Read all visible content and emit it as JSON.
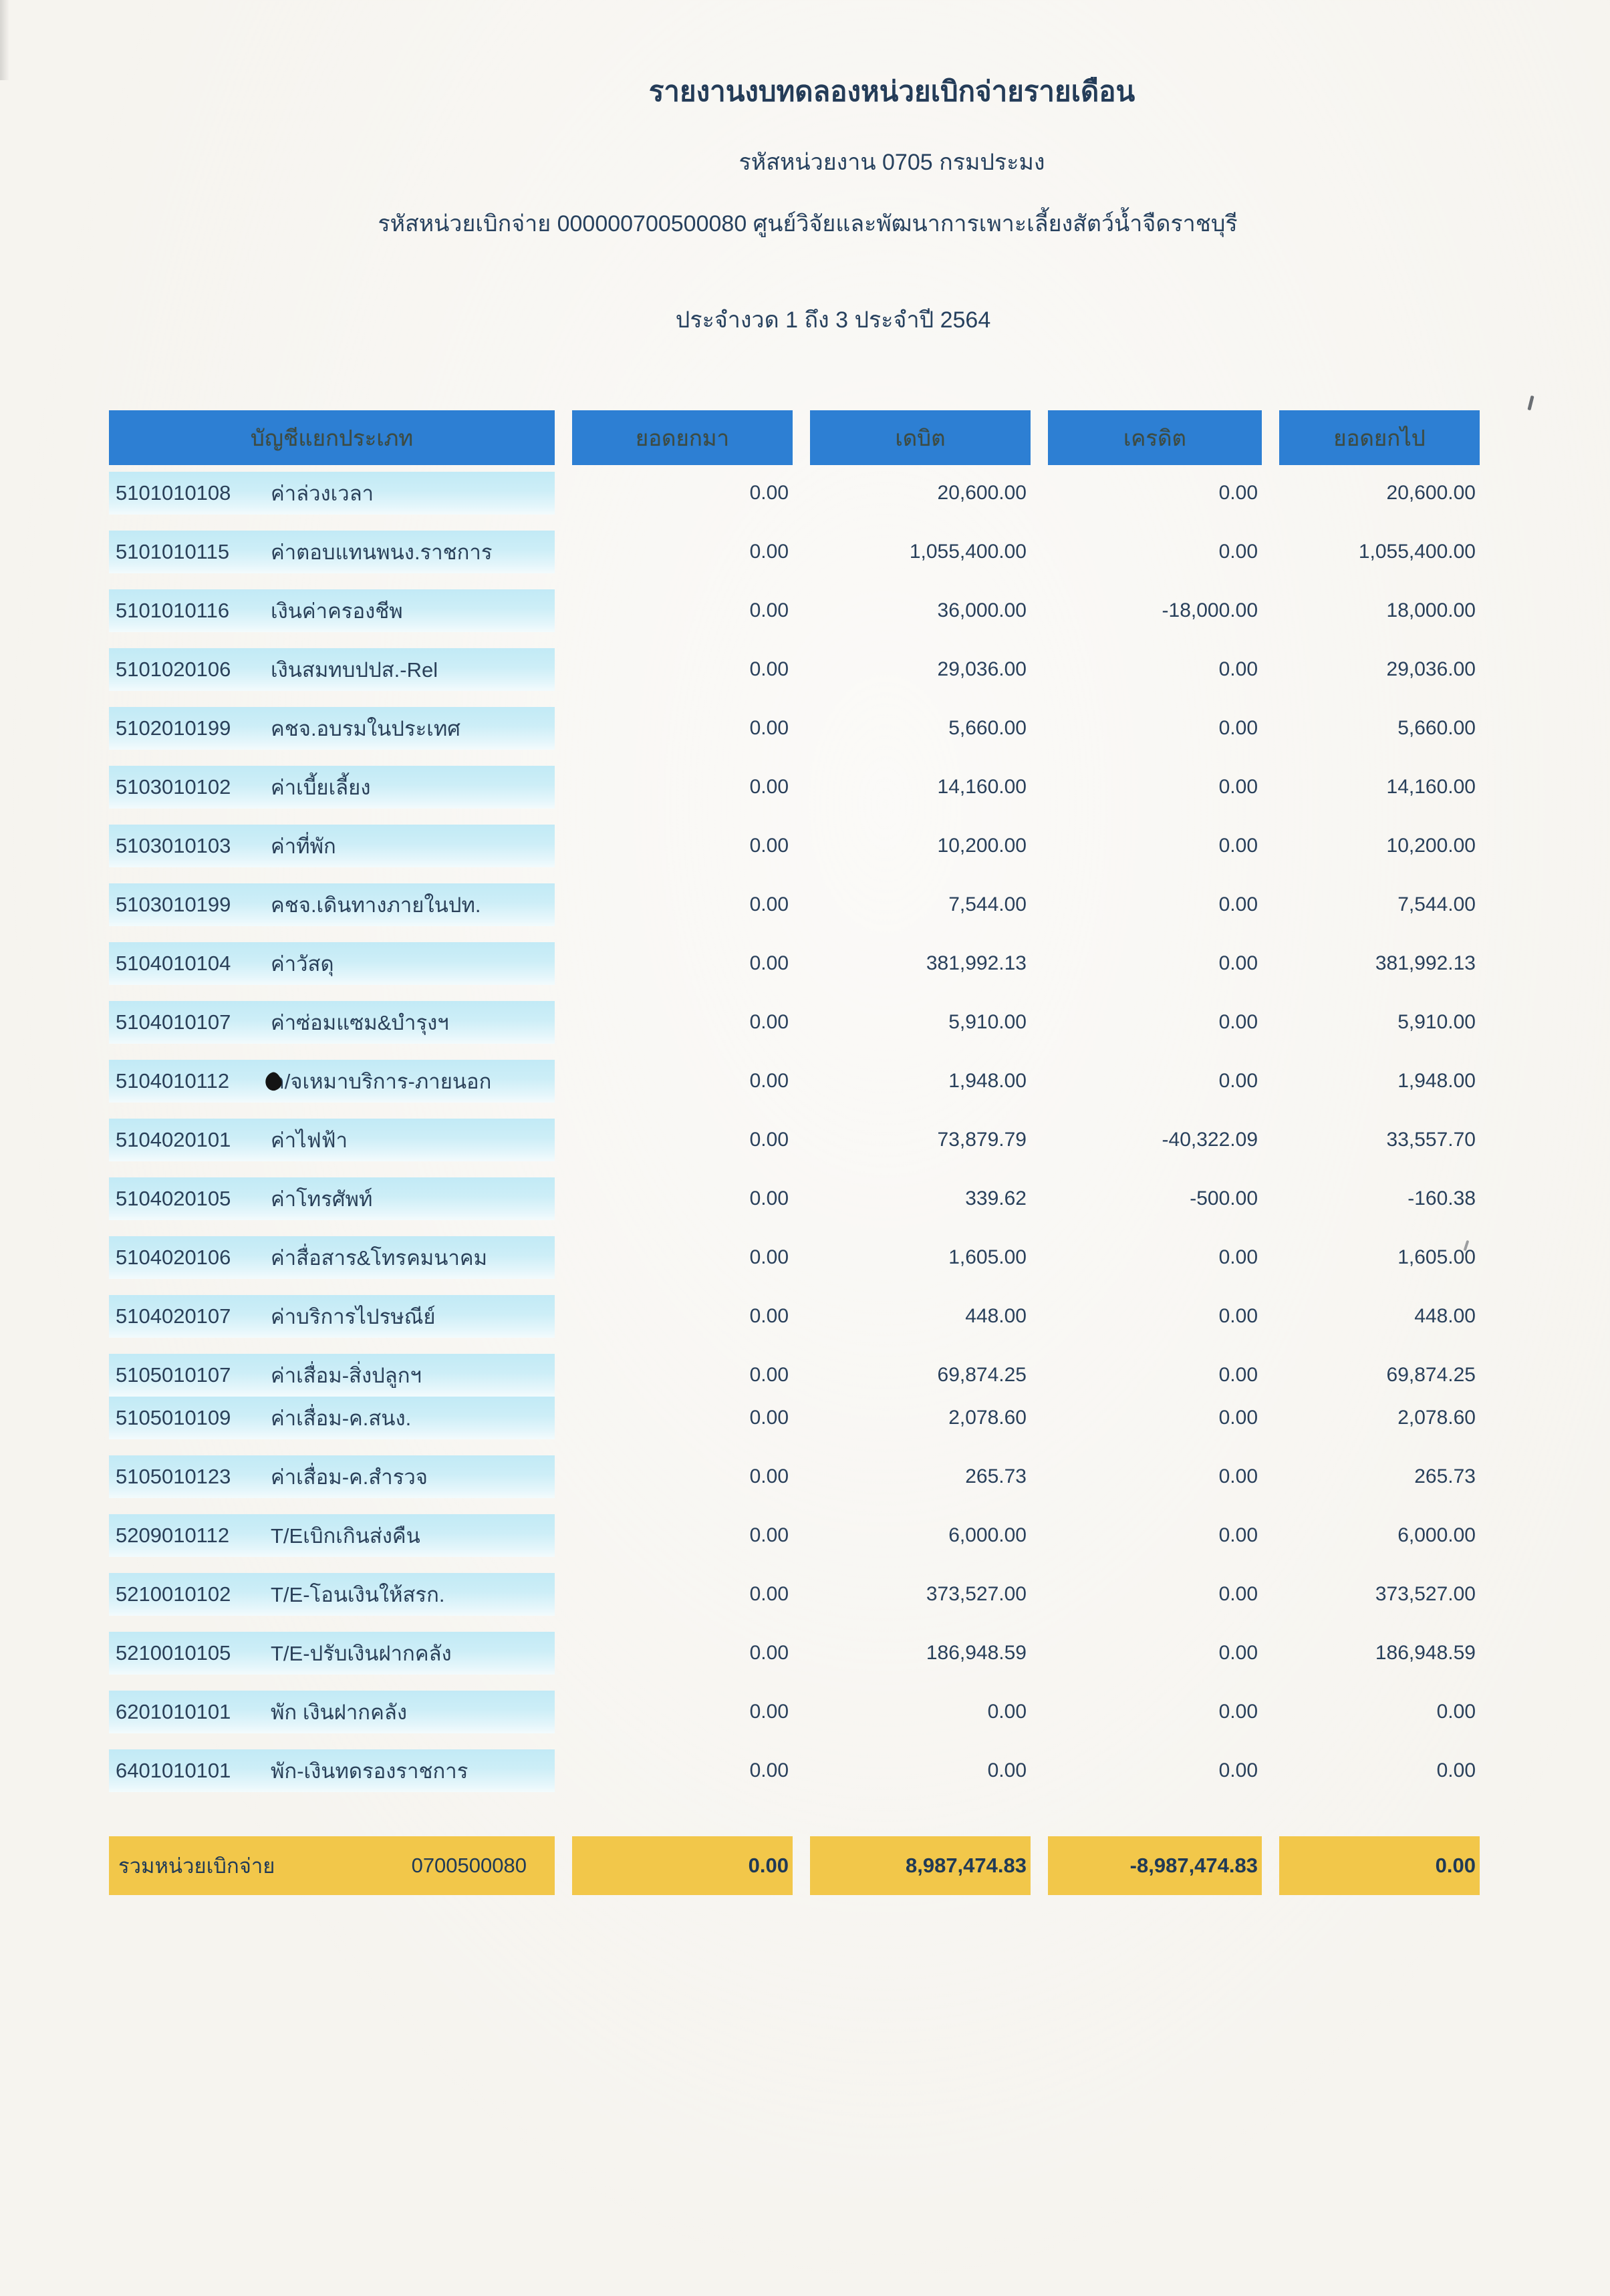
{
  "page": {
    "title": "รายงานงบทดลองหน่วยเบิกจ่ายรายเดือน",
    "agency_line": "รหัสหน่วยงาน 0705 กรมประมง",
    "unit_line": "รหัสหน่วยเบิกจ่าย 000000700500080 ศูนย์วิจัยและพัฒนาการเพาะเลี้ยงสัตว์น้ำจืดราชบุรี",
    "period_line": "ประจำงวด 1 ถึง 3 ประจำปี 2564"
  },
  "table": {
    "headers": {
      "account": "บัญชีแยกประเภท",
      "brought_forward": "ยอดยกมา",
      "debit": "เดบิต",
      "credit": "เครดิต",
      "carried_forward": "ยอดยกไป"
    },
    "rows": [
      {
        "code": "5101010108",
        "name": "ค่าล่วงเวลา",
        "brought_forward": "0.00",
        "debit": "20,600.00",
        "credit": "0.00",
        "carried_forward": "20,600.00"
      },
      {
        "code": "5101010115",
        "name": "ค่าตอบแทนพนง.ราชการ",
        "brought_forward": "0.00",
        "debit": "1,055,400.00",
        "credit": "0.00",
        "carried_forward": "1,055,400.00"
      },
      {
        "code": "5101010116",
        "name": "เงินค่าครองชีพ",
        "brought_forward": "0.00",
        "debit": "36,000.00",
        "credit": "-18,000.00",
        "carried_forward": "18,000.00"
      },
      {
        "code": "5101020106",
        "name": "เงินสมทบปปส.-Rel",
        "brought_forward": "0.00",
        "debit": "29,036.00",
        "credit": "0.00",
        "carried_forward": "29,036.00"
      },
      {
        "code": "5102010199",
        "name": "คชจ.อบรมในประเทศ",
        "brought_forward": "0.00",
        "debit": "5,660.00",
        "credit": "0.00",
        "carried_forward": "5,660.00"
      },
      {
        "code": "5103010102",
        "name": "ค่าเบี้ยเลี้ยง",
        "brought_forward": "0.00",
        "debit": "14,160.00",
        "credit": "0.00",
        "carried_forward": "14,160.00"
      },
      {
        "code": "5103010103",
        "name": "ค่าที่พัก",
        "brought_forward": "0.00",
        "debit": "10,200.00",
        "credit": "0.00",
        "carried_forward": "10,200.00"
      },
      {
        "code": "5103010199",
        "name": "คชจ.เดินทางภายในปท.",
        "brought_forward": "0.00",
        "debit": "7,544.00",
        "credit": "0.00",
        "carried_forward": "7,544.00"
      },
      {
        "code": "5104010104",
        "name": "ค่าวัสดุ",
        "brought_forward": "0.00",
        "debit": "381,992.13",
        "credit": "0.00",
        "carried_forward": "381,992.13"
      },
      {
        "code": "5104010107",
        "name": "ค่าซ่อมแซม&บำรุงฯ",
        "brought_forward": "0.00",
        "debit": "5,910.00",
        "credit": "0.00",
        "carried_forward": "5,910.00"
      },
      {
        "code": "5104010112",
        "name": "ค/จเหมาบริการ-ภายนอก",
        "brought_forward": "0.00",
        "debit": "1,948.00",
        "credit": "0.00",
        "carried_forward": "1,948.00",
        "ink_mark": true
      },
      {
        "code": "5104020101",
        "name": "ค่าไฟฟ้า",
        "brought_forward": "0.00",
        "debit": "73,879.79",
        "credit": "-40,322.09",
        "carried_forward": "33,557.70"
      },
      {
        "code": "5104020105",
        "name": "ค่าโทรศัพท์",
        "brought_forward": "0.00",
        "debit": "339.62",
        "credit": "-500.00",
        "carried_forward": "-160.38"
      },
      {
        "code": "5104020106",
        "name": "ค่าสื่อสาร&โทรคมนาคม",
        "brought_forward": "0.00",
        "debit": "1,605.00",
        "credit": "0.00",
        "carried_forward": "1,605.00"
      },
      {
        "code": "5104020107",
        "name": "ค่าบริการไปรษณีย์",
        "brought_forward": "0.00",
        "debit": "448.00",
        "credit": "0.00",
        "carried_forward": "448.00"
      },
      {
        "code": "5105010107",
        "name": "ค่าเสื่อม-สิ่งปลูกฯ",
        "brought_forward": "0.00",
        "debit": "69,874.25",
        "credit": "0.00",
        "carried_forward": "69,874.25"
      },
      {
        "code": "5105010109",
        "name": "ค่าเสื่อม-ค.สนง.",
        "brought_forward": "0.00",
        "debit": "2,078.60",
        "credit": "0.00",
        "carried_forward": "2,078.60",
        "merge_with_previous": true
      },
      {
        "code": "5105010123",
        "name": "ค่าเสื่อม-ค.สำรวจ",
        "brought_forward": "0.00",
        "debit": "265.73",
        "credit": "0.00",
        "carried_forward": "265.73"
      },
      {
        "code": "5209010112",
        "name": "T/Eเบิกเกินส่งคืน",
        "brought_forward": "0.00",
        "debit": "6,000.00",
        "credit": "0.00",
        "carried_forward": "6,000.00"
      },
      {
        "code": "5210010102",
        "name": "T/E-โอนเงินให้สรก.",
        "brought_forward": "0.00",
        "debit": "373,527.00",
        "credit": "0.00",
        "carried_forward": "373,527.00"
      },
      {
        "code": "5210010105",
        "name": "T/E-ปรับเงินฝากคลัง",
        "brought_forward": "0.00",
        "debit": "186,948.59",
        "credit": "0.00",
        "carried_forward": "186,948.59"
      },
      {
        "code": "6201010101",
        "name": "พัก เงินฝากคลัง",
        "brought_forward": "0.00",
        "debit": "0.00",
        "credit": "0.00",
        "carried_forward": "0.00"
      },
      {
        "code": "6401010101",
        "name": "พัก-เงินทดรองราชการ",
        "brought_forward": "0.00",
        "debit": "0.00",
        "credit": "0.00",
        "carried_forward": "0.00"
      }
    ],
    "total": {
      "label": "รวมหน่วยเบิกจ่าย",
      "unit_code": "0700500080",
      "brought_forward": "0.00",
      "debit": "8,987,474.83",
      "credit": "-8,987,474.83",
      "carried_forward": "0.00"
    }
  },
  "colors": {
    "header_blue": "#2d7fd3",
    "account_cell_cyan": "#c2eaf6",
    "total_yellow": "#f2c74a",
    "text_navy": "#29405b",
    "paper": "#f6f4ef"
  }
}
